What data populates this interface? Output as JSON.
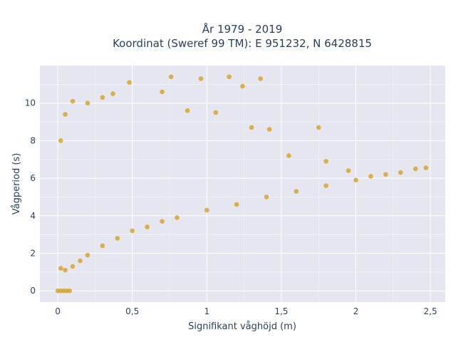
{
  "chart_data": {
    "type": "scatter",
    "title_line1": "År 1979 - 2019",
    "title_line2": "Koordinat (Sweref 99 TM): E 951232, N 6428815",
    "xlabel": "Signifikant våghöjd (m)",
    "ylabel": "Vågperiod (s)",
    "xlim": [
      -0.12,
      2.6
    ],
    "ylim": [
      -0.6,
      12.0
    ],
    "xticks": [
      0,
      0.5,
      1,
      1.5,
      2,
      2.5
    ],
    "xtick_labels": [
      "0",
      "0,5",
      "1",
      "1,5",
      "2",
      "2,5"
    ],
    "yticks": [
      0,
      2,
      4,
      6,
      8,
      10
    ],
    "ytick_labels": [
      "0",
      "2",
      "4",
      "6",
      "8",
      "10"
    ],
    "grid": true,
    "legend": "none",
    "colors": {
      "marker": "#d4a11e",
      "plot_bg": "#e5e6f0",
      "grid": "#ffffff",
      "text": "#2a3f5f"
    },
    "series": [
      {
        "marker_color": "#d4a11e",
        "points": [
          [
            0.0,
            0.0
          ],
          [
            0.02,
            0.0
          ],
          [
            0.04,
            0.0
          ],
          [
            0.06,
            0.0
          ],
          [
            0.08,
            0.0
          ],
          [
            0.02,
            1.2
          ],
          [
            0.05,
            1.1
          ],
          [
            0.1,
            1.3
          ],
          [
            0.15,
            1.6
          ],
          [
            0.2,
            1.9
          ],
          [
            0.3,
            2.4
          ],
          [
            0.4,
            2.8
          ],
          [
            0.5,
            3.2
          ],
          [
            0.6,
            3.4
          ],
          [
            0.7,
            3.7
          ],
          [
            0.8,
            3.9
          ],
          [
            1.0,
            4.3
          ],
          [
            1.2,
            4.6
          ],
          [
            1.4,
            5.0
          ],
          [
            1.6,
            5.3
          ],
          [
            1.8,
            5.6
          ],
          [
            2.0,
            5.9
          ],
          [
            2.2,
            6.2
          ],
          [
            2.4,
            6.5
          ],
          [
            2.47,
            6.55
          ],
          [
            0.02,
            8.0
          ],
          [
            0.05,
            9.4
          ],
          [
            0.1,
            10.1
          ],
          [
            0.2,
            10.0
          ],
          [
            0.3,
            10.3
          ],
          [
            0.37,
            10.5
          ],
          [
            0.48,
            11.1
          ],
          [
            0.7,
            10.6
          ],
          [
            0.76,
            11.4
          ],
          [
            0.96,
            11.3
          ],
          [
            1.15,
            11.4
          ],
          [
            1.36,
            11.3
          ],
          [
            1.24,
            10.9
          ],
          [
            0.87,
            9.6
          ],
          [
            1.06,
            9.5
          ],
          [
            1.3,
            8.7
          ],
          [
            1.42,
            8.6
          ],
          [
            1.75,
            8.7
          ],
          [
            1.55,
            7.2
          ],
          [
            1.8,
            6.9
          ],
          [
            1.95,
            6.4
          ],
          [
            2.1,
            6.1
          ],
          [
            2.3,
            6.3
          ]
        ]
      }
    ]
  }
}
